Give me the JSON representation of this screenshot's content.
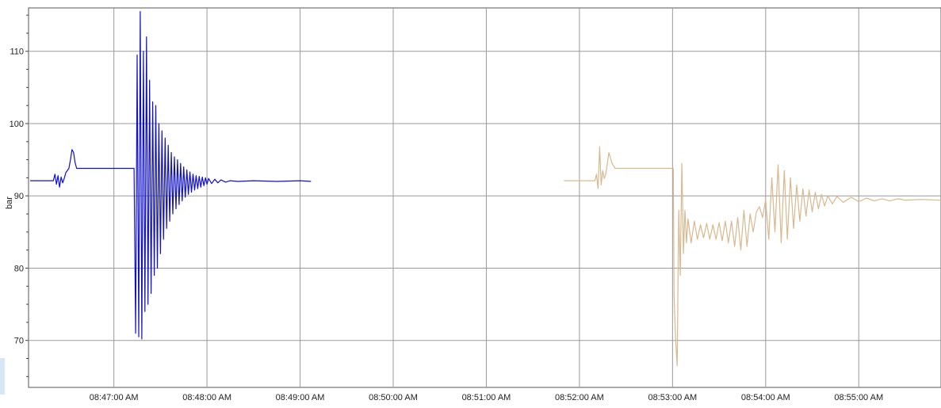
{
  "chart_data": {
    "type": "line",
    "title": "",
    "xlabel": "",
    "ylabel": "bar",
    "grid": true,
    "xlim": [
      "08:46:05",
      "08:55:53"
    ],
    "ylim": [
      63.5,
      116
    ],
    "y_ticks": [
      70,
      80,
      90,
      100,
      110
    ],
    "x_ticks": [
      {
        "t": "08:47:00",
        "label": "08:47:00 AM"
      },
      {
        "t": "08:48:00",
        "label": "08:48:00 AM"
      },
      {
        "t": "08:49:00",
        "label": "08:49:00 AM"
      },
      {
        "t": "08:50:00",
        "label": "08:50:00 AM"
      },
      {
        "t": "08:51:00",
        "label": "08:51:00 AM"
      },
      {
        "t": "08:52:00",
        "label": "08:52:00 AM"
      },
      {
        "t": "08:53:00",
        "label": "08:53:00 AM"
      },
      {
        "t": "08:54:00",
        "label": "08:54:00 AM"
      },
      {
        "t": "08:55:00",
        "label": "08:55:00 AM"
      }
    ],
    "series": [
      {
        "color": "#1010c8",
        "points": [
          [
            "08:46:06",
            92.1
          ],
          [
            "08:46:21",
            92.1
          ],
          [
            "08:46:22",
            93.0
          ],
          [
            "08:46:23",
            91.6
          ],
          [
            "08:46:24",
            92.8
          ],
          [
            "08:46:25",
            91.2
          ],
          [
            "08:46:26",
            92.6
          ],
          [
            "08:46:27",
            91.8
          ],
          [
            "08:46:28",
            92.4
          ],
          [
            "08:46:29",
            93.2
          ],
          [
            "08:46:31",
            93.8
          ],
          [
            "08:46:32",
            95.0
          ],
          [
            "08:46:33",
            96.4
          ],
          [
            "08:46:34",
            96.0
          ],
          [
            "08:46:35",
            94.6
          ],
          [
            "08:46:36",
            93.8
          ],
          [
            "08:46:45",
            93.8
          ],
          [
            "08:47:00",
            93.8
          ],
          [
            "08:47:13",
            93.8
          ],
          [
            "08:47:14",
            71.0
          ],
          [
            "08:47:15",
            109.5
          ],
          [
            "08:47:16",
            70.5
          ],
          [
            "08:47:17",
            115.5
          ],
          [
            "08:47:18",
            70.2
          ],
          [
            "08:47:19",
            110.0
          ],
          [
            "08:47:20",
            74.0
          ],
          [
            "08:47:21",
            112.0
          ],
          [
            "08:47:22",
            75.0
          ],
          [
            "08:47:23",
            106.0
          ],
          [
            "08:47:24",
            76.5
          ],
          [
            "08:47:25",
            103.0
          ],
          [
            "08:47:26",
            79.0
          ],
          [
            "08:47:27",
            102.5
          ],
          [
            "08:47:28",
            80.0
          ],
          [
            "08:47:29",
            100.0
          ],
          [
            "08:47:30",
            82.0
          ],
          [
            "08:47:31",
            99.0
          ],
          [
            "08:47:32",
            84.0
          ],
          [
            "08:47:33",
            98.0
          ],
          [
            "08:47:34",
            85.5
          ],
          [
            "08:47:35",
            97.0
          ],
          [
            "08:47:36",
            86.5
          ],
          [
            "08:47:37",
            96.0
          ],
          [
            "08:47:38",
            87.5
          ],
          [
            "08:47:39",
            95.4
          ],
          [
            "08:47:40",
            88.2
          ],
          [
            "08:47:41",
            95.0
          ],
          [
            "08:47:42",
            88.8
          ],
          [
            "08:47:43",
            94.5
          ],
          [
            "08:47:44",
            89.3
          ],
          [
            "08:47:45",
            94.0
          ],
          [
            "08:47:46",
            89.8
          ],
          [
            "08:47:47",
            93.6
          ],
          [
            "08:47:48",
            90.2
          ],
          [
            "08:47:49",
            93.3
          ],
          [
            "08:47:50",
            90.5
          ],
          [
            "08:47:51",
            93.0
          ],
          [
            "08:47:52",
            90.8
          ],
          [
            "08:47:53",
            92.8
          ],
          [
            "08:47:54",
            91.0
          ],
          [
            "08:47:55",
            92.7
          ],
          [
            "08:47:56",
            91.2
          ],
          [
            "08:47:57",
            92.6
          ],
          [
            "08:47:58",
            91.4
          ],
          [
            "08:47:59",
            92.5
          ],
          [
            "08:48:00",
            91.6
          ],
          [
            "08:48:01",
            92.4
          ],
          [
            "08:48:03",
            91.7
          ],
          [
            "08:48:05",
            92.3
          ],
          [
            "08:48:07",
            91.8
          ],
          [
            "08:48:09",
            92.2
          ],
          [
            "08:48:12",
            91.9
          ],
          [
            "08:48:15",
            92.1
          ],
          [
            "08:48:20",
            92.0
          ],
          [
            "08:48:30",
            92.1
          ],
          [
            "08:48:45",
            92.0
          ],
          [
            "08:49:00",
            92.1
          ],
          [
            "08:49:07",
            92.0
          ]
        ]
      },
      {
        "color": "#d8b88e",
        "points": [
          [
            "08:51:50",
            92.1
          ],
          [
            "08:52:10",
            92.1
          ],
          [
            "08:52:11",
            93.0
          ],
          [
            "08:52:12",
            91.0
          ],
          [
            "08:52:13",
            96.8
          ],
          [
            "08:52:14",
            91.5
          ],
          [
            "08:52:15",
            93.5
          ],
          [
            "08:52:16",
            92.4
          ],
          [
            "08:52:17",
            93.0
          ],
          [
            "08:52:19",
            96.0
          ],
          [
            "08:52:21",
            94.5
          ],
          [
            "08:52:23",
            93.8
          ],
          [
            "08:52:30",
            93.8
          ],
          [
            "08:52:45",
            93.8
          ],
          [
            "08:53:00",
            93.8
          ],
          [
            "08:53:00.5",
            93.8
          ],
          [
            "08:53:01",
            76.0
          ],
          [
            "08:53:02",
            70.0
          ],
          [
            "08:53:03",
            66.5
          ],
          [
            "08:53:04",
            88.0
          ],
          [
            "08:53:05",
            79.0
          ],
          [
            "08:53:06",
            94.5
          ],
          [
            "08:53:07",
            82.0
          ],
          [
            "08:53:08",
            88.0
          ],
          [
            "08:53:09",
            83.5
          ],
          [
            "08:53:10",
            86.8
          ],
          [
            "08:53:12",
            83.5
          ],
          [
            "08:53:14",
            86.5
          ],
          [
            "08:53:16",
            84.0
          ],
          [
            "08:53:18",
            86.0
          ],
          [
            "08:53:20",
            84.2
          ],
          [
            "08:53:22",
            86.2
          ],
          [
            "08:53:24",
            84.0
          ],
          [
            "08:53:26",
            86.0
          ],
          [
            "08:53:28",
            84.0
          ],
          [
            "08:53:30",
            86.3
          ],
          [
            "08:53:32",
            83.8
          ],
          [
            "08:53:34",
            86.5
          ],
          [
            "08:53:36",
            83.5
          ],
          [
            "08:53:38",
            86.5
          ],
          [
            "08:53:40",
            83.0
          ],
          [
            "08:53:42",
            87.0
          ],
          [
            "08:53:44",
            82.5
          ],
          [
            "08:53:46",
            88.0
          ],
          [
            "08:53:48",
            83.0
          ],
          [
            "08:53:50",
            87.5
          ],
          [
            "08:53:52",
            85.0
          ],
          [
            "08:53:54",
            87.8
          ],
          [
            "08:53:56",
            88.5
          ],
          [
            "08:53:58",
            87.0
          ],
          [
            "08:54:00",
            89.5
          ],
          [
            "08:54:02",
            84.0
          ],
          [
            "08:54:04",
            92.5
          ],
          [
            "08:54:06",
            85.0
          ],
          [
            "08:54:08",
            94.3
          ],
          [
            "08:54:10",
            83.5
          ],
          [
            "08:54:12",
            93.5
          ],
          [
            "08:54:14",
            84.0
          ],
          [
            "08:54:16",
            92.5
          ],
          [
            "08:54:18",
            85.5
          ],
          [
            "08:54:20",
            91.5
          ],
          [
            "08:54:22",
            86.5
          ],
          [
            "08:54:24",
            91.0
          ],
          [
            "08:54:26",
            87.2
          ],
          [
            "08:54:28",
            90.8
          ],
          [
            "08:54:30",
            87.8
          ],
          [
            "08:54:32",
            90.5
          ],
          [
            "08:54:34",
            88.2
          ],
          [
            "08:54:36",
            90.2
          ],
          [
            "08:54:38",
            88.6
          ],
          [
            "08:54:40",
            90.0
          ],
          [
            "08:54:43",
            88.9
          ],
          [
            "08:54:46",
            89.9
          ],
          [
            "08:54:50",
            89.1
          ],
          [
            "08:54:55",
            89.8
          ],
          [
            "08:55:00",
            89.2
          ],
          [
            "08:55:05",
            89.7
          ],
          [
            "08:55:10",
            89.3
          ],
          [
            "08:55:15",
            89.6
          ],
          [
            "08:55:20",
            89.3
          ],
          [
            "08:55:25",
            89.6
          ],
          [
            "08:55:30",
            89.4
          ],
          [
            "08:55:40",
            89.5
          ],
          [
            "08:55:53",
            89.4
          ]
        ]
      }
    ]
  }
}
